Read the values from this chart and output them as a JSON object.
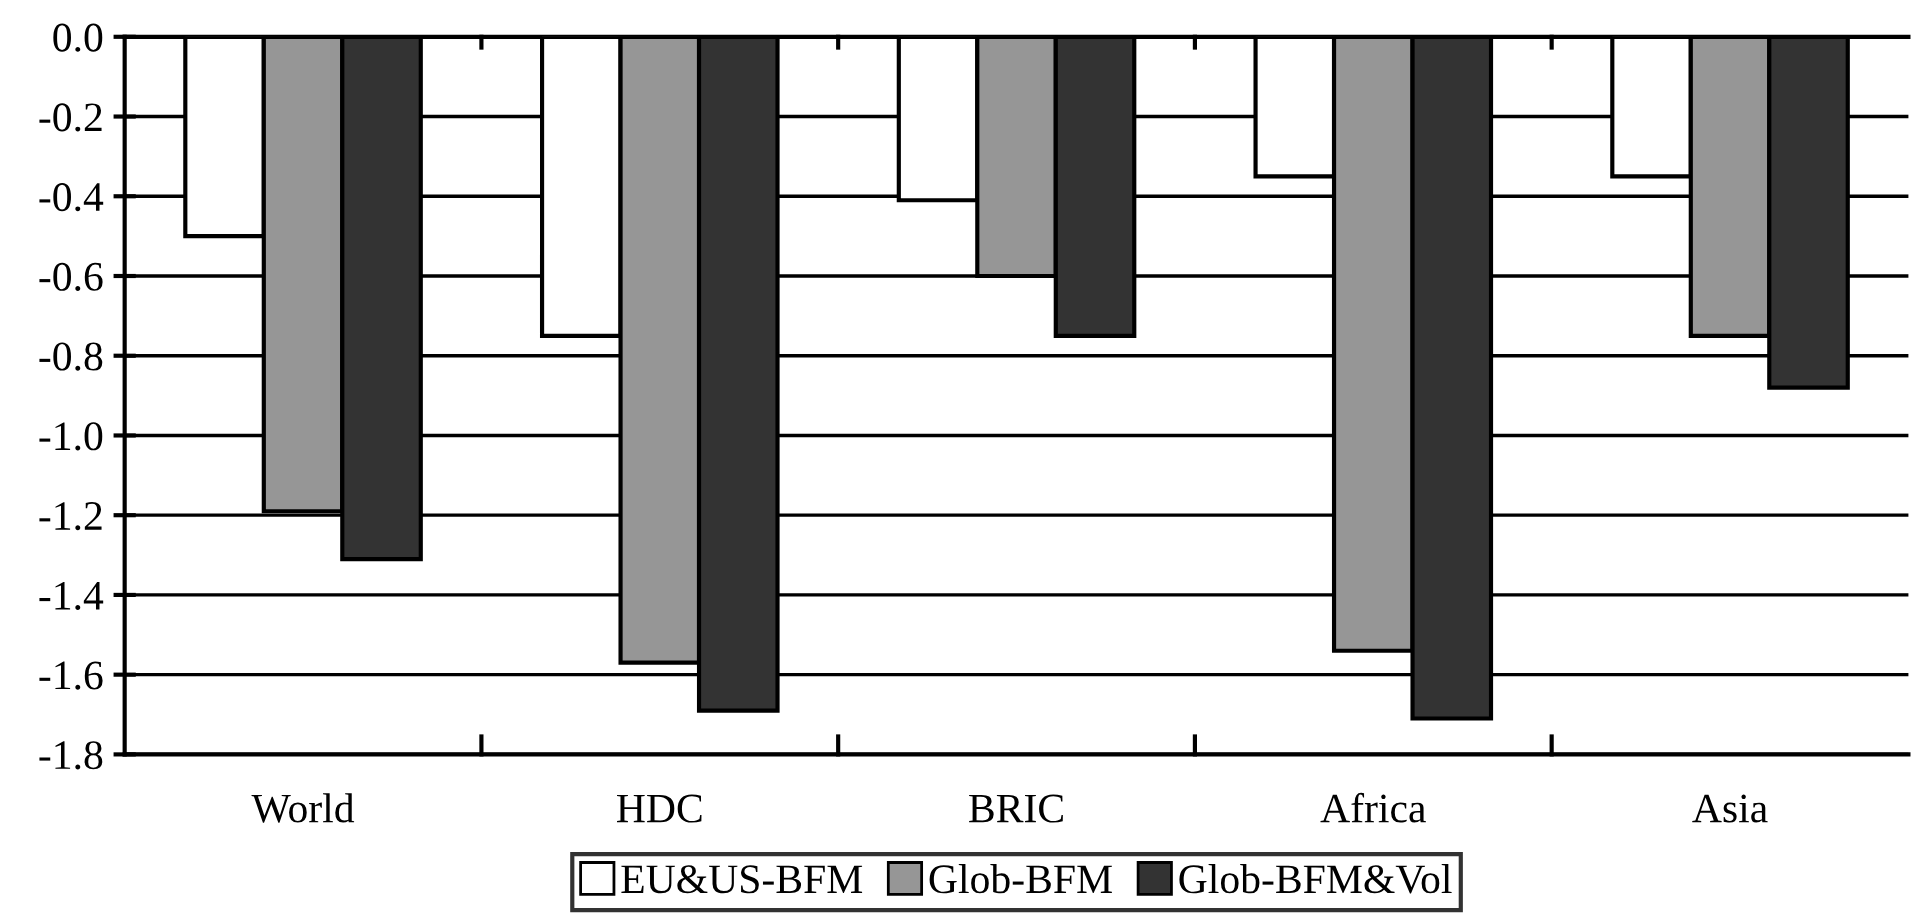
{
  "chart_data": {
    "type": "bar",
    "categories": [
      "World",
      "HDC",
      "BRIC",
      "Africa",
      "Asia"
    ],
    "series": [
      {
        "name": "EU&US-BFM",
        "color": "#ffffff",
        "values": [
          -0.5,
          -0.75,
          -0.41,
          -0.35,
          -0.35
        ]
      },
      {
        "name": "Glob-BFM",
        "color": "#969696",
        "values": [
          -1.19,
          -1.57,
          -0.6,
          -1.54,
          -0.75
        ]
      },
      {
        "name": "Glob-BFM&Vol",
        "color": "#333333",
        "values": [
          -1.31,
          -1.69,
          -0.75,
          -1.71,
          -0.88
        ]
      }
    ],
    "ylim": [
      -1.8,
      0.0
    ],
    "yticks": [
      {
        "value": 0.0,
        "label": "0.0"
      },
      {
        "value": -0.2,
        "label": "-0.2"
      },
      {
        "value": -0.4,
        "label": "-0.4"
      },
      {
        "value": -0.6,
        "label": "-0.6"
      },
      {
        "value": -0.8,
        "label": "-0.8"
      },
      {
        "value": -1.0,
        "label": "-1.0"
      },
      {
        "value": -1.2,
        "label": "-1.2"
      },
      {
        "value": -1.4,
        "label": "-1.4"
      },
      {
        "value": -1.6,
        "label": "-1.6"
      },
      {
        "value": -1.8,
        "label": "-1.8"
      }
    ],
    "grid": "y",
    "legend": "bottom"
  }
}
